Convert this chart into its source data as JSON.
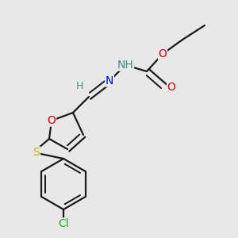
{
  "background_color": "#e8e8e8",
  "bond_color": "#1a1a1a",
  "atom_colors": {
    "O": "#cc0000",
    "N": "#0000dd",
    "S": "#bbbb00",
    "Cl": "#22aa22",
    "H": "#4a8888",
    "C": "#1a1a1a"
  },
  "linewidth": 1.6,
  "fs": 10,
  "fs_small": 8
}
